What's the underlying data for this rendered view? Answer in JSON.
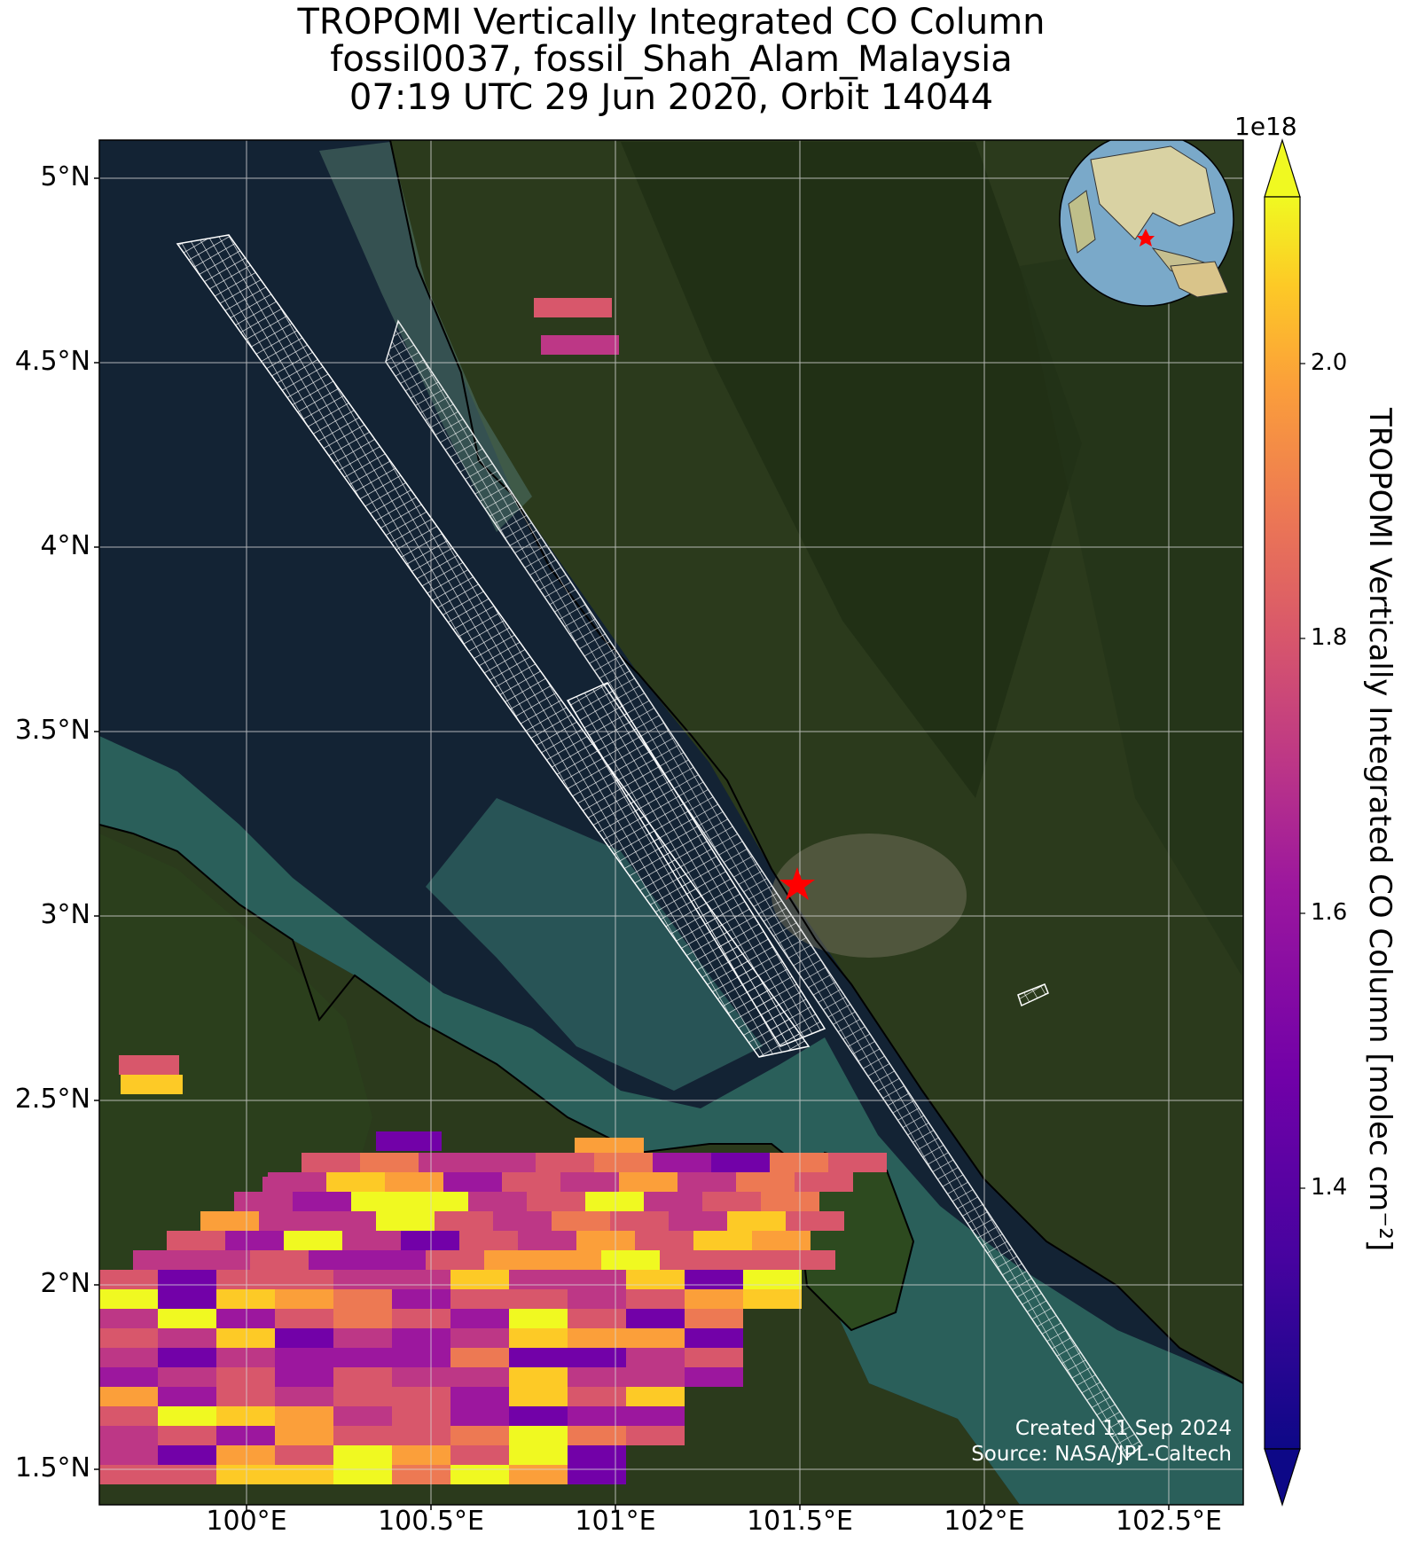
{
  "title": {
    "line1": "TROPOMI Vertically Integrated CO Column",
    "line2": "fossil0037, fossil_Shah_Alam_Malaysia",
    "line3": "07:19 UTC 29 Jun 2020, Orbit 14044"
  },
  "map": {
    "lat_ticks": [
      "5°N",
      "4.5°N",
      "4°N",
      "3.5°N",
      "3°N",
      "2.5°N",
      "2°N",
      "1.5°N"
    ],
    "lon_ticks": [
      "100°E",
      "100.5°E",
      "101°E",
      "101.5°E",
      "102°E",
      "102.5°E"
    ],
    "lon_range": [
      99.6,
      102.7
    ],
    "lat_range": [
      1.4,
      5.1
    ],
    "site_marker": {
      "lon": 101.48,
      "lat": 3.09,
      "color": "#ff0000",
      "icon": "red-star"
    },
    "basemap": "satellite-imagery"
  },
  "colorbar": {
    "label": "TROPOMI Vertically Integrated CO Column [molec cm⁻²]",
    "exponent": "1e18",
    "ticks": [
      "2.0",
      "1.8",
      "1.6",
      "1.4"
    ],
    "range": [
      1.2,
      2.1
    ],
    "colormap": "plasma",
    "extend": "both"
  },
  "credits": {
    "created": "Created 11 Sep 2024",
    "source": "Source: NASA/JPL-Caltech"
  },
  "inset": {
    "type": "globe",
    "marker_color": "#ff0000"
  }
}
